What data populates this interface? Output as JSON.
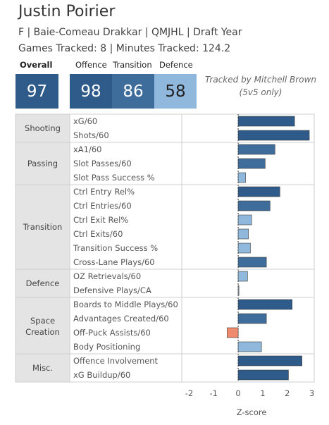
{
  "header": {
    "player_name": "Justin Poirier",
    "subtitle": "F | Baie-Comeau Drakkar | QMJHL | Draft Year",
    "tracked": "Games Tracked: 8 | Minutes Tracked: 124.2"
  },
  "scores": {
    "overall_label": "Overall",
    "overall": "97",
    "offence_label": "Offence",
    "offence": "98",
    "transition_label": "Transition",
    "transition": "86",
    "defence_label": "Defence",
    "defence": "58"
  },
  "note": {
    "line1": "Tracked by Mitchell Brown",
    "line2": "(5v5 only)"
  },
  "colors": {
    "dark_blue": "#2e5b8a",
    "mid_blue": "#3f6d9b",
    "light_blue": "#8fb8dc",
    "negative": "#f08a6e",
    "category_bg": "#e4e4e4"
  },
  "chart_data": {
    "type": "bar",
    "orientation": "horizontal",
    "xlabel": "Z-score",
    "xlim": [
      -2.3,
      3.1
    ],
    "xticks": [
      -2,
      -1,
      0,
      1,
      2,
      3
    ],
    "zero_line": "dashed",
    "groups": [
      {
        "category": "Shooting",
        "metrics": [
          {
            "name": "xG/60",
            "value": 2.3
          },
          {
            "name": "Shots/60",
            "value": 2.9
          }
        ]
      },
      {
        "category": "Passing",
        "metrics": [
          {
            "name": "xA1/60",
            "value": 1.5
          },
          {
            "name": "Slot Passes/60",
            "value": 1.1
          },
          {
            "name": "Slot Pass Success %",
            "value": 0.3
          }
        ]
      },
      {
        "category": "Transition",
        "metrics": [
          {
            "name": "Ctrl Entry Rel%",
            "value": 1.7
          },
          {
            "name": "Ctrl Entries/60",
            "value": 1.3
          },
          {
            "name": "Ctrl Exit Rel%",
            "value": 0.55
          },
          {
            "name": "Ctrl Exits/60",
            "value": 0.42
          },
          {
            "name": "Transition Success %",
            "value": 0.5
          },
          {
            "name": "Cross-Lane Plays/60",
            "value": 1.15
          }
        ]
      },
      {
        "category": "Defence",
        "metrics": [
          {
            "name": "OZ Retrievals/60",
            "value": 0.38
          },
          {
            "name": "Defensive Plays/CA",
            "value": 0.03
          }
        ]
      },
      {
        "category": "Space Creation",
        "metrics": [
          {
            "name": "Boards to Middle Plays/60",
            "value": 2.2
          },
          {
            "name": "Advantages Created/60",
            "value": 1.15
          },
          {
            "name": "Off-Puck Assists/60",
            "value": -0.45
          },
          {
            "name": "Body Positioning",
            "value": 0.95
          }
        ]
      },
      {
        "category": "Misc.",
        "metrics": [
          {
            "name": "Offence Involvement",
            "value": 2.6
          },
          {
            "name": "xG Buildup/60",
            "value": 2.05
          }
        ]
      }
    ]
  }
}
